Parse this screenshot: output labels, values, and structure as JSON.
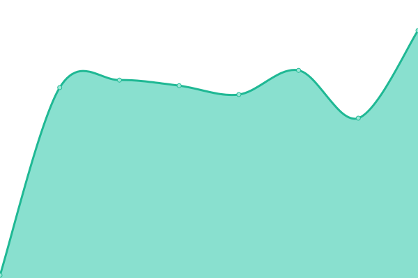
{
  "chart_data": {
    "type": "area",
    "title": "",
    "xlabel": "",
    "ylabel": "",
    "x": [
      0,
      1,
      2,
      3,
      4,
      5,
      6,
      7
    ],
    "series": [
      {
        "values": [
          1,
          68.5,
          71.2,
          69.2,
          66,
          74.7,
          57.5,
          89
        ]
      }
    ],
    "ylim": [
      0,
      100
    ],
    "grid": false,
    "smooth": true,
    "markers": true,
    "colors": {
      "line": "#1fb894",
      "fill": "#89e0cf",
      "marker_fill": "#9fe8d8"
    }
  }
}
